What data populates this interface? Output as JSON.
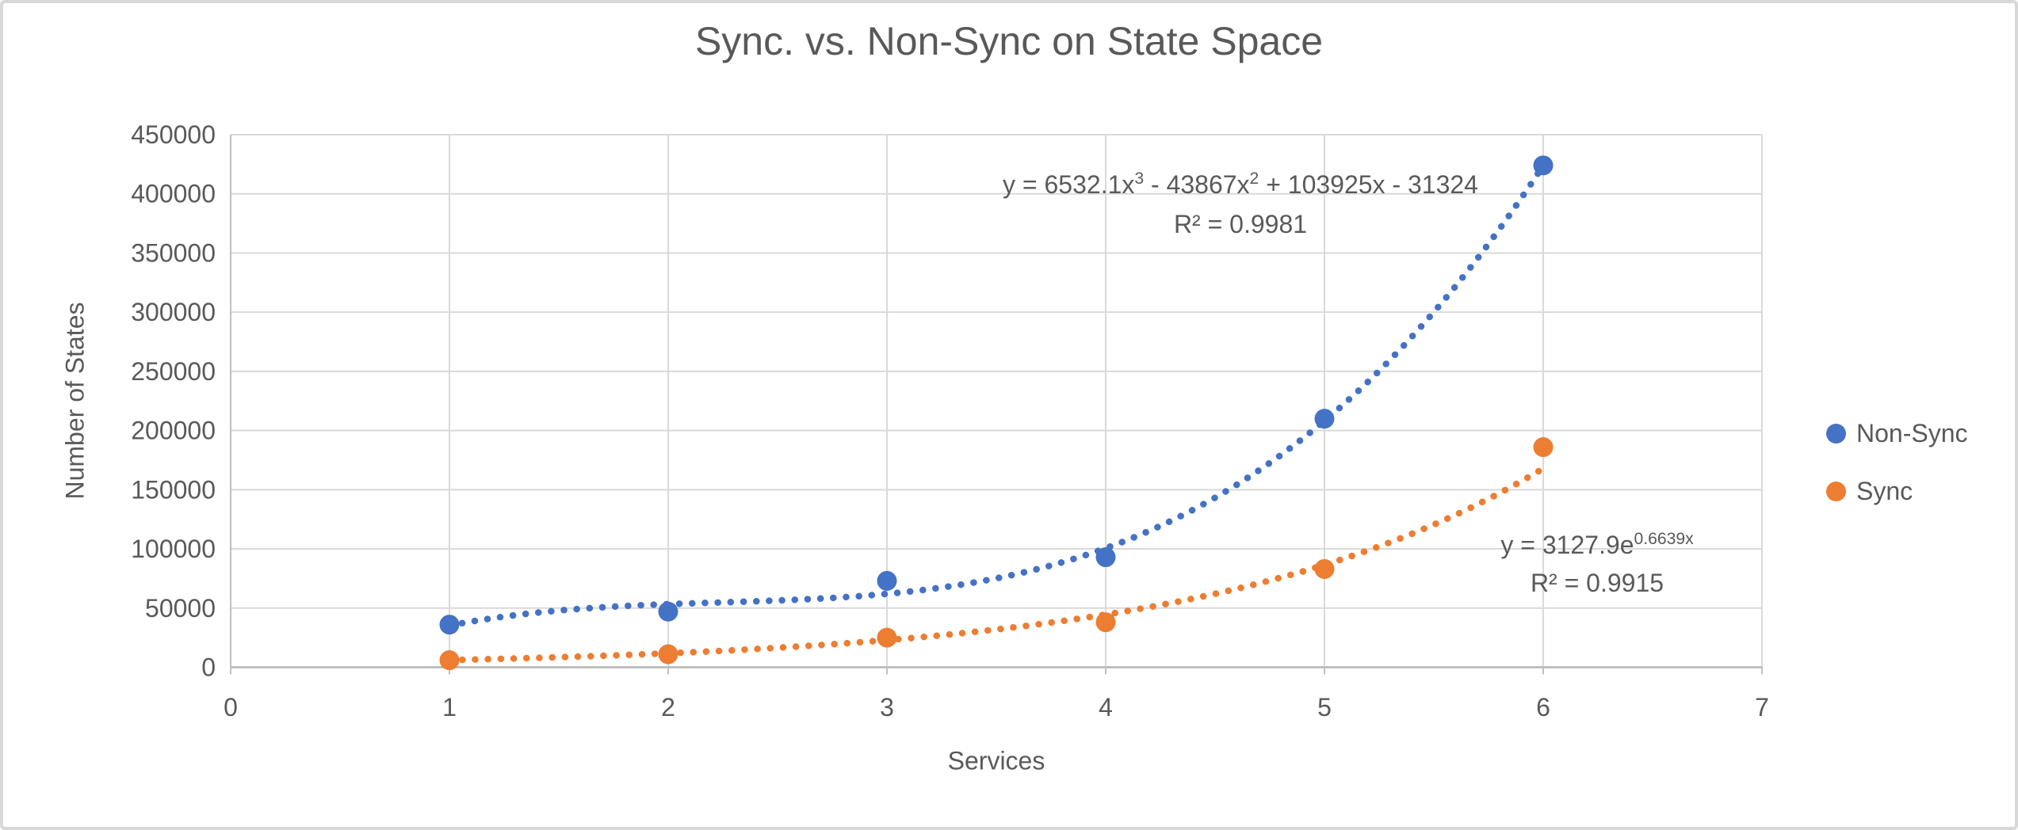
{
  "chart": {
    "title": "Sync. vs. Non-Sync on State Space",
    "x_axis_title": "Services",
    "y_axis_title": "Number of States",
    "legend": [
      {
        "label": "Non-Sync",
        "color": "#4472C4"
      },
      {
        "label": "Sync",
        "color": "#ED7D31"
      }
    ],
    "annotations": {
      "non_sync": {
        "eq_base1": "y = 6532.1x",
        "eq_sup1": "3",
        "eq_base2": " - 43867x",
        "eq_sup2": "2",
        "eq_base3": " + 103925x - 31324",
        "r2": "R² = 0.9981"
      },
      "sync": {
        "eq_base": "y = 3127.9e",
        "eq_sup": "0.6639x",
        "r2": "R² = 0.9915"
      }
    }
  },
  "chart_data": {
    "type": "scatter",
    "title": "Sync. vs. Non-Sync on State Space",
    "xlabel": "Services",
    "ylabel": "Number of States",
    "x": [
      1,
      2,
      3,
      4,
      5,
      6
    ],
    "series": [
      {
        "name": "Non-Sync",
        "color": "#4472C4",
        "values": [
          36000,
          47000,
          73000,
          93000,
          210000,
          424000
        ],
        "trendline": {
          "kind": "cubic",
          "coefficients": [
            6532.1,
            -43867,
            103925,
            -31324
          ],
          "equation": "y = 6532.1x^3 - 43867x^2 + 103925x - 31324",
          "r2": 0.9981,
          "x_start": 1,
          "x_end": 6
        }
      },
      {
        "name": "Sync",
        "color": "#ED7D31",
        "values": [
          6000,
          11000,
          25000,
          38000,
          83000,
          186000
        ],
        "trendline": {
          "kind": "exponential",
          "a": 3127.9,
          "b": 0.6639,
          "equation": "y = 3127.9e^(0.6639x)",
          "r2": 0.9915,
          "x_start": 1,
          "x_end": 6
        }
      }
    ],
    "xlim": [
      0,
      7
    ],
    "ylim": [
      0,
      450000
    ],
    "x_ticks": [
      0,
      1,
      2,
      3,
      4,
      5,
      6,
      7
    ],
    "y_ticks": [
      0,
      50000,
      100000,
      150000,
      200000,
      250000,
      300000,
      350000,
      400000,
      450000
    ],
    "grid": true,
    "legend_position": "right",
    "marker_style": "circle",
    "trendline_style": "dotted",
    "colors": {
      "gridline": "#D9D9D9",
      "axis": "#BFBFBF",
      "text": "#595959",
      "border": "#D8D8D8",
      "background": "#FFFFFF"
    }
  }
}
